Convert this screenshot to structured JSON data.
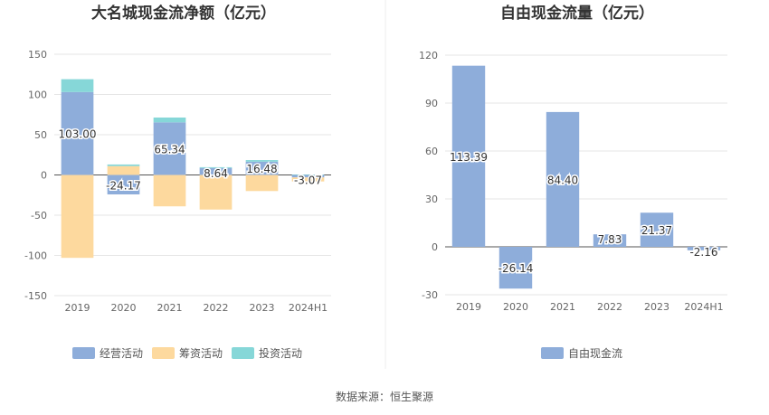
{
  "chart_data": [
    {
      "type": "bar",
      "stacked": true,
      "title": "大名城现金流净额（亿元）",
      "categories": [
        "2019",
        "2020",
        "2021",
        "2022",
        "2023",
        "2024H1"
      ],
      "ylim": [
        -150,
        150
      ],
      "yticks": [
        "150",
        "100",
        "50",
        "0",
        "-50",
        "-100",
        "-150"
      ],
      "grid": true,
      "legend_position": "bottom",
      "series": [
        {
          "name": "经营活动",
          "color": "#8eadda",
          "values": [
            103.0,
            -24.17,
            65.34,
            8.64,
            16.48,
            -3.07
          ],
          "labels": [
            "103.00",
            "-24.17",
            "65.34",
            "8.64",
            "16.48",
            "-3.07"
          ]
        },
        {
          "name": "筹资活动",
          "color": "#fdd99e",
          "values": [
            -103,
            11,
            -39,
            -43,
            -20,
            -5
          ]
        },
        {
          "name": "投资活动",
          "color": "#86d7d8",
          "values": [
            16,
            2,
            6,
            1,
            2,
            0.5
          ]
        }
      ]
    },
    {
      "type": "bar",
      "title": "自由现金流量（亿元）",
      "categories": [
        "2019",
        "2020",
        "2021",
        "2022",
        "2023",
        "2024H1"
      ],
      "ylim": [
        -30,
        120
      ],
      "yticks": [
        "120",
        "90",
        "60",
        "30",
        "0",
        "-30"
      ],
      "grid": true,
      "legend_position": "bottom",
      "series": [
        {
          "name": "自由现金流",
          "color": "#8eadda",
          "values": [
            113.39,
            -26.14,
            84.4,
            7.83,
            21.37,
            -2.16
          ],
          "labels": [
            "113.39",
            "-26.14",
            "84.40",
            "7.83",
            "21.37",
            "-2.16"
          ]
        }
      ]
    }
  ],
  "footer": "数据来源：恒生聚源"
}
